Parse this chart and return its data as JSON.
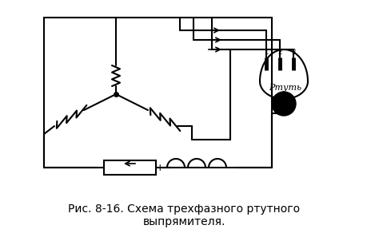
{
  "title": "Рис. 8-16. Схема трехфазного ртутного\nвыпрямителя.",
  "title_fontsize": 10,
  "bg_color": "#ffffff",
  "line_color": "#000000",
  "line_width": 1.5
}
